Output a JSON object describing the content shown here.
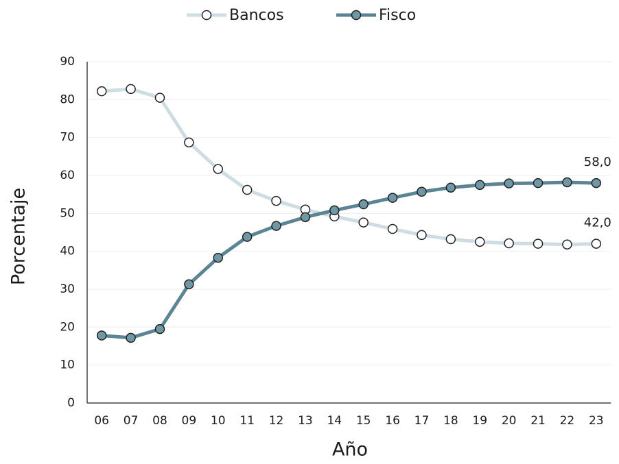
{
  "chart_data": {
    "type": "line",
    "x_label": "Año",
    "y_label": "Porcentaje",
    "categories": [
      "06",
      "07",
      "08",
      "09",
      "10",
      "11",
      "12",
      "13",
      "14",
      "15",
      "16",
      "17",
      "18",
      "19",
      "20",
      "21",
      "22",
      "23"
    ],
    "series": [
      {
        "name": "Bancos",
        "color": "#cddde3",
        "marker_fill": "#ffffff",
        "values": [
          82.2,
          82.8,
          80.5,
          68.7,
          61.7,
          56.2,
          53.3,
          51.0,
          49.2,
          47.6,
          45.9,
          44.3,
          43.2,
          42.5,
          42.1,
          42.0,
          41.8,
          42.0
        ],
        "value_labels": [
          null,
          null,
          null,
          null,
          null,
          null,
          null,
          null,
          null,
          null,
          null,
          null,
          null,
          null,
          null,
          null,
          null,
          "42,0"
        ]
      },
      {
        "name": "Fisco",
        "color": "#5b8594",
        "marker_fill": "#6f97a5",
        "values": [
          17.8,
          17.2,
          19.5,
          31.3,
          38.3,
          43.8,
          46.7,
          49.0,
          50.8,
          52.4,
          54.1,
          55.7,
          56.8,
          57.5,
          57.9,
          58.0,
          58.2,
          58.0
        ],
        "value_labels": [
          null,
          null,
          null,
          null,
          null,
          null,
          null,
          null,
          null,
          null,
          null,
          null,
          null,
          null,
          null,
          null,
          null,
          "58,0"
        ]
      }
    ],
    "ylim": [
      0,
      90
    ],
    "yticks": [
      0,
      10,
      20,
      30,
      40,
      50,
      60,
      70,
      80,
      90
    ],
    "grid": true,
    "legend": "top"
  }
}
